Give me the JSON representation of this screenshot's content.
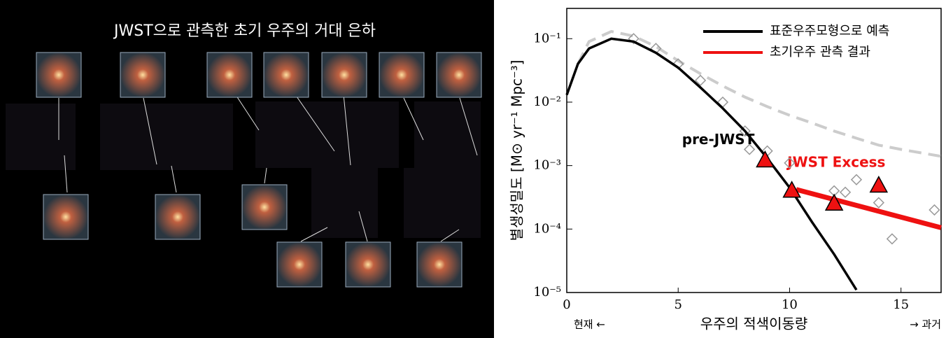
{
  "image_title": "JWST으로 관측한 초기 우주의 거대 은하",
  "chart_data": {
    "type": "line",
    "xlabel": "우주의 적색이동량",
    "ylabel": "별생성밀도  [M⊙ yr⁻¹ Mpc⁻³]",
    "left_note": "현재 ←",
    "right_note": "→ 과거",
    "annotations": [
      {
        "text": "pre-JWST",
        "x": 6.8,
        "y": 0.0025,
        "color": "#000000"
      },
      {
        "text": "JWST Excess",
        "x": 12.1,
        "y": 0.0011,
        "color": "#ee1111"
      }
    ],
    "xlim": [
      0,
      16.8
    ],
    "ylim": [
      1e-05,
      0.3
    ],
    "log_y": true,
    "xticks": [
      0,
      5,
      10,
      15
    ],
    "yticks": [
      {
        "value": 1e-05,
        "label": "10⁻⁵"
      },
      {
        "value": 0.0001,
        "label": "10⁻⁴"
      },
      {
        "value": 0.001,
        "label": "10⁻³"
      },
      {
        "value": 0.01,
        "label": "10⁻²"
      },
      {
        "value": 0.1,
        "label": "10⁻¹"
      }
    ],
    "legend": "upper right",
    "series": [
      {
        "color": "#cccccc",
        "style": "dashed",
        "x": [
          0.5,
          1,
          2,
          3,
          4,
          5,
          6,
          7,
          8,
          9,
          10,
          11,
          12,
          13,
          14,
          15,
          16.8
        ],
        "values": [
          0.04,
          0.09,
          0.13,
          0.11,
          0.075,
          0.045,
          0.028,
          0.018,
          0.012,
          0.0085,
          0.0062,
          0.0047,
          0.0035,
          0.0027,
          0.0021,
          0.0018,
          0.0014
        ]
      },
      {
        "color": "#999999",
        "style": "points",
        "x": [
          3,
          4,
          5,
          6,
          7,
          8,
          8.2,
          9,
          10,
          12,
          12.5,
          13,
          14,
          14.6,
          16.5
        ],
        "values": [
          0.1,
          0.07,
          0.04,
          0.022,
          0.01,
          0.0035,
          0.0018,
          0.0017,
          0.0011,
          0.0004,
          0.00038,
          0.0006,
          0.00026,
          7e-05,
          0.0002
        ]
      },
      {
        "name": "표준우주모형으로 예측",
        "color": "#000000",
        "style": "line",
        "x": [
          0,
          0.5,
          1,
          2,
          3,
          4,
          5,
          6,
          7,
          8,
          9,
          10,
          11,
          12,
          13
        ],
        "values": [
          0.013,
          0.04,
          0.07,
          0.1,
          0.09,
          0.06,
          0.035,
          0.017,
          0.008,
          0.0035,
          0.0013,
          0.00045,
          0.00013,
          4e-05,
          1.1e-05
        ]
      },
      {
        "name": "초기우주 관측 결과",
        "color": "#ee1111",
        "style": "line",
        "x": [
          10.3,
          16.8
        ],
        "values": [
          0.00042,
          0.000105
        ]
      },
      {
        "color": "#ee1111",
        "style": "triangles",
        "x": [
          8.9,
          10.1,
          12,
          14
        ],
        "values": [
          0.0012,
          0.0004,
          0.00025,
          0.00048
        ]
      }
    ]
  }
}
